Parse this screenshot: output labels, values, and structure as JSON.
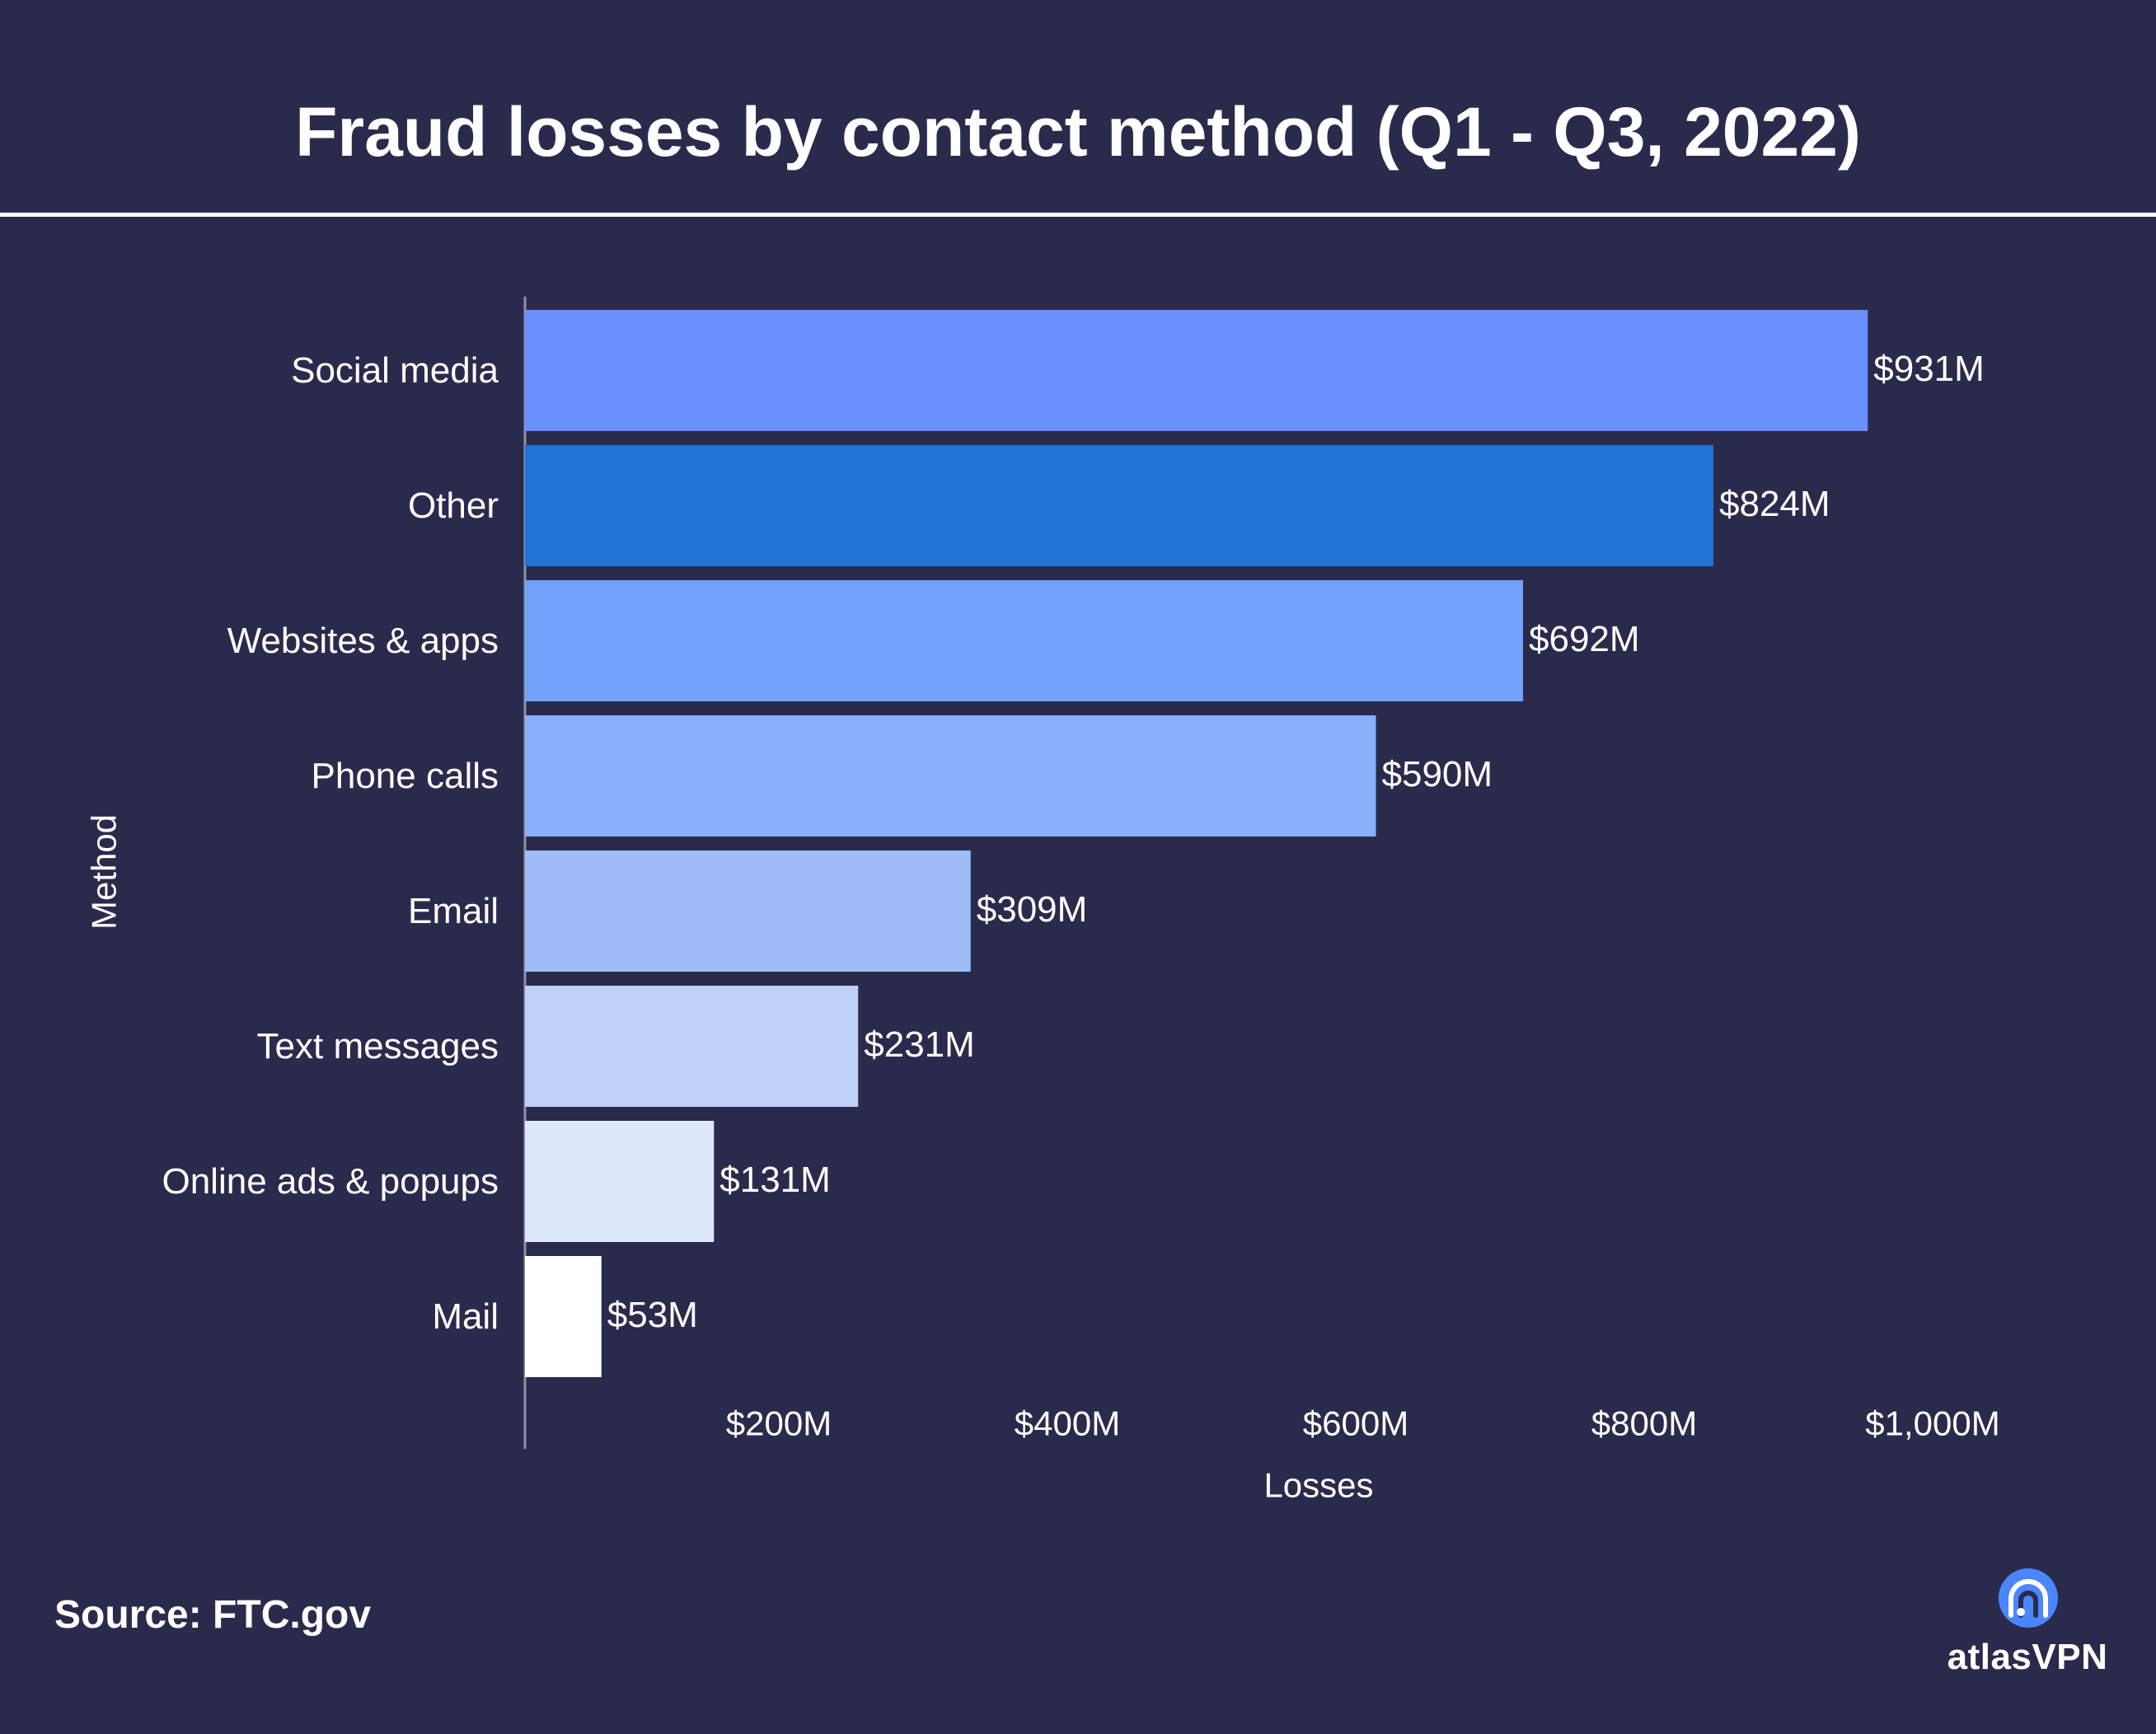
{
  "page": {
    "title": "Fraud losses by contact method (Q1 - Q3, 2022)",
    "source": "Source: FTC.gov",
    "brand": "atlasVPN",
    "brand_icon": "atlas-vpn-logo-icon"
  },
  "colors": {
    "background": "#2a2b4c",
    "text": "#ffffff",
    "axis": "#8f90a8",
    "brand_accent": "#4a86ff"
  },
  "chart_data": {
    "type": "bar",
    "orientation": "horizontal",
    "categories": [
      "Social media",
      "Other",
      "Websites & apps",
      "Phone calls",
      "Email",
      "Text messages",
      "Online ads & popups",
      "Mail"
    ],
    "values": [
      931,
      824,
      692,
      590,
      309,
      231,
      131,
      53
    ],
    "value_labels": [
      "$931M",
      "$824M",
      "$692M",
      "$590M",
      "$309M",
      "$231M",
      "$131M",
      "$53M"
    ],
    "bar_colors": [
      "#6a8ffe",
      "#2273d6",
      "#72a2fa",
      "#88b0fb",
      "#9ebdf7",
      "#bfd1f8",
      "#dfe8fb",
      "#ffffff"
    ],
    "xlabel": "Losses",
    "ylabel": "Method",
    "xlim": [
      0,
      1000
    ],
    "x_ticks": [
      200,
      400,
      600,
      800,
      1000
    ],
    "x_tick_labels": [
      "$200M",
      "$400M",
      "$600M",
      "$800M",
      "$1,000M"
    ],
    "grid": false,
    "legend": "none"
  }
}
